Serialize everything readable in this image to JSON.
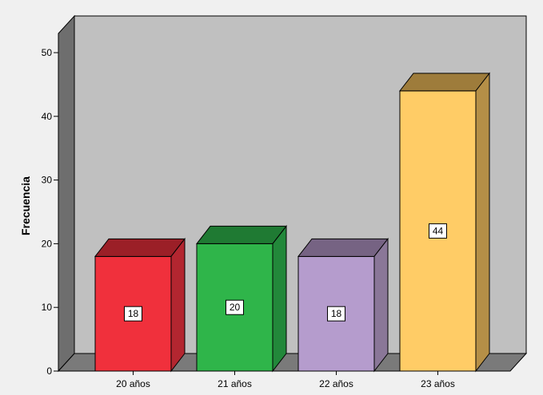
{
  "chart_data": {
    "type": "bar",
    "style": "3d",
    "title": "",
    "xlabel": "",
    "ylabel": "Frecuencia",
    "ylim": [
      0,
      50
    ],
    "yticks": [
      0,
      10,
      20,
      30,
      40,
      50
    ],
    "categories": [
      "20 años",
      "21 años",
      "22 años",
      "23 años"
    ],
    "values": [
      18,
      20,
      18,
      44
    ],
    "data_labels": [
      "18",
      "20",
      "18",
      "44"
    ],
    "grid": false,
    "legend": "none",
    "colors": {
      "bars": [
        {
          "front": "#f0303c",
          "top": "#9b1f27",
          "side": "#b32630"
        },
        {
          "front": "#2fb54a",
          "top": "#1f7a33",
          "side": "#22883a"
        },
        {
          "front": "#b59ccd",
          "top": "#766383",
          "side": "#8a7798"
        },
        {
          "front": "#ffcc66",
          "top": "#9e7c3b",
          "side": "#b58f47"
        }
      ],
      "plot_back": "#c0c0c0",
      "plot_floor": "#7a7a7a",
      "plot_side": "#6e6e6e",
      "background": "#f0f0f0"
    }
  }
}
